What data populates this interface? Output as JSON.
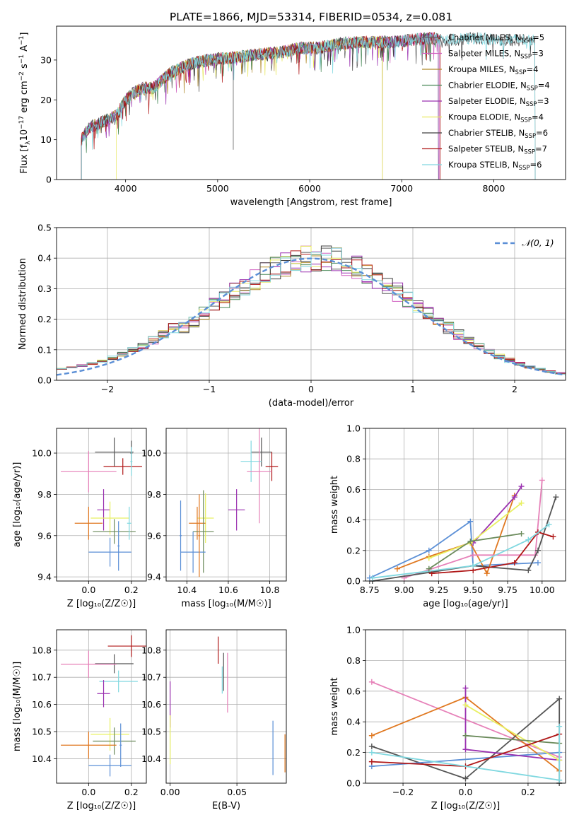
{
  "figure": {
    "title": "PLATE=1866, MJD=53314, FIBERID=0534, z=0.081"
  },
  "colors": {
    "Chabrier MILES": "#5f5f5f",
    "Salpeter MILES": "#d060c0",
    "Kroupa MILES": "#b08a2a",
    "Chabrier ELODIE": "#4a8a5a",
    "Salpeter ELODIE": "#9a30b0",
    "Kroupa ELODIE": "#e8e860",
    "Chabrier STELIB": "#404040",
    "Salpeter STELIB": "#b01818",
    "Kroupa STELIB": "#80d8e0",
    "gauss": "#5b8fd6",
    "p_blue": "#5b8fd6",
    "p_orange": "#e07820",
    "p_pink": "#e680b8",
    "p_purple": "#9a30b0",
    "p_gray": "#555555",
    "p_red": "#b01818",
    "p_cyan": "#80d8e0",
    "p_yellow": "#e8f060",
    "p_green": "#6a8a5a"
  },
  "chart_data": [
    {
      "id": "spectrum",
      "type": "line",
      "title": "PLATE=1866, MJD=53314, FIBERID=0534, z=0.081",
      "xlabel": "wavelength [Angstrom, rest frame]",
      "ylabel_main": "Flux [f",
      "ylabel_sub": "λ",
      "ylabel_rest": "10",
      "ylabel_exp": "−17",
      "ylabel_units": " erg cm",
      "xlim": [
        3250,
        8780
      ],
      "ylim": [
        0,
        38.5
      ],
      "xticks": [
        4000,
        5000,
        6000,
        7000,
        8000
      ],
      "yticks": [
        0,
        10,
        20,
        30
      ],
      "xtick_labels": [
        "4000",
        "5000",
        "6000",
        "7000",
        "8000"
      ],
      "ytick_labels": [
        "0",
        "10",
        "20",
        "30"
      ],
      "continuum": [
        [
          3520,
          10
        ],
        [
          3600,
          13
        ],
        [
          3700,
          14
        ],
        [
          3800,
          15
        ],
        [
          3900,
          16
        ],
        [
          4000,
          20
        ],
        [
          4100,
          22
        ],
        [
          4200,
          23
        ],
        [
          4300,
          23
        ],
        [
          4400,
          25
        ],
        [
          4500,
          27
        ],
        [
          4700,
          29
        ],
        [
          4900,
          30
        ],
        [
          5100,
          30.5
        ],
        [
          5300,
          31
        ],
        [
          5500,
          31.5
        ],
        [
          5700,
          32
        ],
        [
          5900,
          33
        ],
        [
          6100,
          33
        ],
        [
          6300,
          34
        ],
        [
          6500,
          34.5
        ],
        [
          6700,
          34.5
        ],
        [
          6900,
          34.5
        ],
        [
          7100,
          35
        ],
        [
          7300,
          35.5
        ],
        [
          7500,
          35
        ],
        [
          7800,
          35.5
        ],
        [
          8100,
          35
        ],
        [
          8400,
          35
        ]
      ],
      "legend": [
        {
          "label": "Chabrier MILES, N",
          "sub": "SSP",
          "n": "=5",
          "color_key": "Chabrier MILES"
        },
        {
          "label": "Salpeter MILES, N",
          "sub": "SSP",
          "n": "=3",
          "color_key": "Salpeter MILES"
        },
        {
          "label": "Kroupa MILES, N",
          "sub": "SSP",
          "n": "=4",
          "color_key": "Kroupa MILES"
        },
        {
          "label": "Chabrier ELODIE, N",
          "sub": "SSP",
          "n": "=4",
          "color_key": "Chabrier ELODIE"
        },
        {
          "label": "Salpeter ELODIE, N",
          "sub": "SSP",
          "n": "=3",
          "color_key": "Salpeter ELODIE"
        },
        {
          "label": "Kroupa ELODIE, N",
          "sub": "SSP",
          "n": "=4",
          "color_key": "Kroupa ELODIE"
        },
        {
          "label": "Chabrier STELIB, N",
          "sub": "SSP",
          "n": "=6",
          "color_key": "Chabrier STELIB"
        },
        {
          "label": "Salpeter STELIB, N",
          "sub": "SSP",
          "n": "=7",
          "color_key": "Salpeter STELIB"
        },
        {
          "label": "Kroupa STELIB, N",
          "sub": "SSP",
          "n": "=6",
          "color_key": "Kroupa STELIB"
        }
      ],
      "legend_placement": "right"
    },
    {
      "id": "residuals",
      "type": "histogram",
      "xlabel": "(data-model)/error",
      "ylabel": "Normed distribution",
      "xlim": [
        -2.5,
        2.5
      ],
      "ylim": [
        0,
        0.5
      ],
      "xticks": [
        -2,
        -1,
        0,
        1,
        2
      ],
      "xtick_labels": [
        "−2",
        "−1",
        "0",
        "1",
        "2"
      ],
      "yticks": [
        0,
        0.1,
        0.2,
        0.3,
        0.4,
        0.5
      ],
      "ytick_labels": [
        "0.0",
        "0.1",
        "0.2",
        "0.3",
        "0.4",
        "0.5"
      ],
      "bin_width": 0.1,
      "gauss_label": "𝒩(0, 1)",
      "grid": true
    },
    {
      "id": "age_vs_Z",
      "type": "errorbar",
      "xlabel": "Z [log₁₀(Z/Z☉)]",
      "ylabel": "age  [log₁₀(age/yr)]",
      "xlim": [
        -0.15,
        0.27
      ],
      "ylim": [
        9.38,
        10.12
      ],
      "xticks": [
        0.0,
        0.2
      ],
      "xtick_labels": [
        "0.0",
        "0.2"
      ],
      "yticks": [
        9.4,
        9.6,
        9.8,
        10.0
      ],
      "ytick_labels": [
        "9.4",
        "9.6",
        "9.8",
        "10.0"
      ],
      "points": [
        {
          "x": 0.12,
          "xerr": 0.09,
          "y": 10.005,
          "yerr": 0.07,
          "c": "p_gray"
        },
        {
          "x": 0.2,
          "xerr": 0.005,
          "y": 10.0,
          "yerr": 0.06,
          "c": "p_gray"
        },
        {
          "x": 0.16,
          "xerr": 0.09,
          "y": 9.935,
          "yerr": 0.04,
          "c": "p_red"
        },
        {
          "x": 0.2,
          "xerr": 0.005,
          "y": 9.96,
          "yerr": 0.07,
          "c": "p_cyan"
        },
        {
          "x": 0.0,
          "xerr": 0.13,
          "y": 9.91,
          "yerr": 0.1,
          "c": "p_pink"
        },
        {
          "x": 0.07,
          "xerr": 0.03,
          "y": 9.725,
          "yerr": 0.1,
          "c": "p_purple"
        },
        {
          "x": 0.1,
          "xerr": 0.09,
          "y": 9.685,
          "yerr": 0.08,
          "c": "p_yellow"
        },
        {
          "x": 0.0,
          "xerr": 0.065,
          "y": 9.66,
          "yerr": 0.08,
          "c": "p_orange"
        },
        {
          "x": 0.12,
          "xerr": 0.1,
          "y": 9.62,
          "yerr": 0.06,
          "c": "p_green"
        },
        {
          "x": 0.19,
          "xerr": 0.01,
          "y": 9.66,
          "yerr": 0.08,
          "c": "p_cyan"
        },
        {
          "x": 0.1,
          "xerr": 0.1,
          "y": 9.52,
          "yerr": 0.07,
          "c": "p_blue"
        },
        {
          "x": 0.14,
          "xerr": 0.005,
          "y": 9.55,
          "yerr": 0.12,
          "c": "p_blue"
        }
      ]
    },
    {
      "id": "age_vs_mass",
      "type": "errorbar",
      "xlabel": "mass [log₁₀(M/M☉)]",
      "ylabel": "",
      "xlim": [
        10.3,
        10.88
      ],
      "ylim": [
        9.38,
        10.12
      ],
      "xticks": [
        10.4,
        10.6,
        10.8
      ],
      "xtick_labels": [
        "10.4",
        "10.6",
        "10.8"
      ],
      "yticks": [
        9.4,
        9.6,
        9.8,
        10.0
      ],
      "ytick_labels": [
        "9.4",
        "9.6",
        "9.8",
        "10.0"
      ],
      "points": [
        {
          "x": 10.76,
          "xerr": 0.05,
          "y": 10.005,
          "yerr": 0.07,
          "c": "p_gray"
        },
        {
          "x": 10.81,
          "xerr": 0.03,
          "y": 9.935,
          "yerr": 0.07,
          "c": "p_red"
        },
        {
          "x": 10.71,
          "xerr": 0.05,
          "y": 9.96,
          "yerr": 0.1,
          "c": "p_cyan"
        },
        {
          "x": 10.75,
          "xerr": 0.06,
          "y": 9.91,
          "yerr": 0.25,
          "c": "p_pink"
        },
        {
          "x": 10.64,
          "xerr": 0.04,
          "y": 9.725,
          "yerr": 0.1,
          "c": "p_purple"
        },
        {
          "x": 10.49,
          "xerr": 0.04,
          "y": 9.685,
          "yerr": 0.12,
          "c": "p_yellow"
        },
        {
          "x": 10.45,
          "xerr": 0.04,
          "y": 9.66,
          "yerr": 0.08,
          "c": "p_orange"
        },
        {
          "x": 10.48,
          "xerr": 0.05,
          "y": 9.62,
          "yerr": 0.2,
          "c": "p_green"
        },
        {
          "x": 10.43,
          "xerr": 0.06,
          "y": 9.52,
          "yerr": 0.1,
          "c": "p_blue"
        },
        {
          "x": 10.37,
          "xerr": 0.005,
          "y": 9.6,
          "yerr": 0.17,
          "c": "p_blue"
        },
        {
          "x": 10.46,
          "xerr": 0.005,
          "y": 9.6,
          "yerr": 0.2,
          "c": "p_orange"
        }
      ]
    },
    {
      "id": "weight_vs_age",
      "type": "line",
      "xlabel": "age  [log₁₀(age/yr)]",
      "ylabel": "mass weight",
      "xlim": [
        8.72,
        10.17
      ],
      "ylim": [
        0,
        1
      ],
      "xticks": [
        8.75,
        9.0,
        9.25,
        9.5,
        9.75,
        10.0
      ],
      "xtick_labels": [
        "8.75",
        "9.00",
        "9.25",
        "9.50",
        "9.75",
        "10.00"
      ],
      "yticks": [
        0,
        0.2,
        0.4,
        0.6,
        0.8,
        1.0
      ],
      "ytick_labels": [
        "0.0",
        "0.2",
        "0.4",
        "0.6",
        "0.8",
        "1.0"
      ],
      "series": [
        {
          "c": "p_blue",
          "x": [
            8.75,
            9.18,
            9.48,
            9.5,
            9.97
          ],
          "y": [
            0.02,
            0.2,
            0.39,
            0.1,
            0.12
          ]
        },
        {
          "c": "p_orange",
          "x": [
            8.95,
            9.18,
            9.48,
            9.6,
            9.8
          ],
          "y": [
            0.08,
            0.16,
            0.25,
            0.05,
            0.56
          ]
        },
        {
          "c": "p_pink",
          "x": [
            9.0,
            9.5,
            9.95,
            10.0
          ],
          "y": [
            0.02,
            0.17,
            0.17,
            0.66
          ]
        },
        {
          "c": "p_purple",
          "x": [
            9.5,
            9.8,
            9.85
          ],
          "y": [
            0.25,
            0.55,
            0.62
          ]
        },
        {
          "c": "p_gray",
          "x": [
            8.77,
            9.5,
            9.9,
            9.97,
            10.1
          ],
          "y": [
            0.0,
            0.1,
            0.07,
            0.2,
            0.55
          ]
        },
        {
          "c": "p_red",
          "x": [
            9.2,
            9.5,
            9.8,
            9.97,
            10.08
          ],
          "y": [
            0.05,
            0.07,
            0.12,
            0.32,
            0.29
          ]
        },
        {
          "c": "p_cyan",
          "x": [
            8.77,
            9.5,
            9.9,
            10.05
          ],
          "y": [
            0.02,
            0.1,
            0.27,
            0.37
          ]
        },
        {
          "c": "p_yellow",
          "x": [
            9.18,
            9.48,
            9.85
          ],
          "y": [
            0.15,
            0.25,
            0.51
          ]
        },
        {
          "c": "p_green",
          "x": [
            9.18,
            9.48,
            9.85
          ],
          "y": [
            0.08,
            0.26,
            0.31
          ]
        }
      ]
    },
    {
      "id": "mass_vs_Z",
      "type": "errorbar",
      "xlabel": "Z [log₁₀(Z/Z☉)]",
      "ylabel": "mass [log₁₀(M/M☉)]",
      "xlim": [
        -0.15,
        0.27
      ],
      "ylim": [
        10.31,
        10.875
      ],
      "xticks": [
        0.0,
        0.2
      ],
      "xtick_labels": [
        "0.0",
        "0.2"
      ],
      "yticks": [
        10.4,
        10.5,
        10.6,
        10.7,
        10.8
      ],
      "ytick_labels": [
        "10.4",
        "10.5",
        "10.6",
        "10.7",
        "10.8"
      ],
      "points": [
        {
          "x": 0.2,
          "xerr": 0.11,
          "y": 10.815,
          "yerr": 0.04,
          "c": "p_red"
        },
        {
          "x": 0.12,
          "xerr": 0.09,
          "y": 10.75,
          "yerr": 0.035,
          "c": "p_gray"
        },
        {
          "x": 0.0,
          "xerr": 0.13,
          "y": 10.748,
          "yerr": 0.05,
          "c": "p_pink"
        },
        {
          "x": 0.14,
          "xerr": 0.09,
          "y": 10.685,
          "yerr": 0.04,
          "c": "p_cyan"
        },
        {
          "x": 0.07,
          "xerr": 0.03,
          "y": 10.64,
          "yerr": 0.05,
          "c": "p_purple"
        },
        {
          "x": 0.1,
          "xerr": 0.09,
          "y": 10.49,
          "yerr": 0.06,
          "c": "p_yellow"
        },
        {
          "x": 0.12,
          "xerr": 0.1,
          "y": 10.465,
          "yerr": 0.05,
          "c": "p_green"
        },
        {
          "x": 0.0,
          "xerr": 0.13,
          "y": 10.45,
          "yerr": 0.05,
          "c": "p_orange"
        },
        {
          "x": 0.1,
          "xerr": 0.1,
          "y": 10.375,
          "yerr": 0.04,
          "c": "p_blue"
        },
        {
          "x": 0.15,
          "xerr": 0.005,
          "y": 10.45,
          "yerr": 0.08,
          "c": "p_blue"
        }
      ]
    },
    {
      "id": "mass_vs_EBV",
      "type": "errorbar",
      "xlabel": "E(B-V)",
      "ylabel": "",
      "xlim": [
        -0.003,
        0.087
      ],
      "ylim": [
        10.31,
        10.875
      ],
      "xticks": [
        0.0,
        0.05
      ],
      "xtick_labels": [
        "0.00",
        "0.05"
      ],
      "yticks": [
        10.4,
        10.5,
        10.6,
        10.7,
        10.8
      ],
      "ytick_labels": [
        "10.4",
        "10.5",
        "10.6",
        "10.7",
        "10.8"
      ],
      "points": [
        {
          "x": 0.036,
          "xerr": 0.0,
          "y": 10.8,
          "yerr": 0.05,
          "c": "p_red"
        },
        {
          "x": 0.04,
          "xerr": 0.0,
          "y": 10.72,
          "yerr": 0.07,
          "c": "p_gray"
        },
        {
          "x": 0.039,
          "xerr": 0.0,
          "y": 10.69,
          "yerr": 0.05,
          "c": "p_cyan"
        },
        {
          "x": 0.043,
          "xerr": 0.0,
          "y": 10.68,
          "yerr": 0.11,
          "c": "p_pink"
        },
        {
          "x": 0.0,
          "xerr": 0.0,
          "y": 10.6,
          "yerr": 0.085,
          "c": "p_purple"
        },
        {
          "x": 0.0,
          "xerr": 0.0,
          "y": 10.47,
          "yerr": 0.09,
          "c": "p_yellow"
        },
        {
          "x": 0.077,
          "xerr": 0.0,
          "y": 10.44,
          "yerr": 0.1,
          "c": "p_blue"
        },
        {
          "x": 0.086,
          "xerr": 0.0,
          "y": 10.42,
          "yerr": 0.07,
          "c": "p_orange"
        }
      ]
    },
    {
      "id": "weight_vs_Z",
      "type": "line",
      "xlabel": "Z [log₁₀(Z/Z☉)]",
      "ylabel": "mass weight",
      "xlim": [
        -0.32,
        0.32
      ],
      "ylim": [
        0,
        1
      ],
      "xticks": [
        -0.2,
        0.0,
        0.2
      ],
      "xtick_labels": [
        "−0.2",
        "0.0",
        "0.2"
      ],
      "yticks": [
        0,
        0.2,
        0.4,
        0.6,
        0.8,
        1.0
      ],
      "ytick_labels": [
        "0.0",
        "0.2",
        "0.4",
        "0.6",
        "0.8",
        "1.0"
      ],
      "series": [
        {
          "c": "p_pink",
          "x": [
            -0.3,
            0.3
          ],
          "y": [
            0.66,
            0.17
          ]
        },
        {
          "c": "p_orange",
          "x": [
            -0.3,
            0.0,
            0.3
          ],
          "y": [
            0.31,
            0.56,
            0.08
          ]
        },
        {
          "c": "p_gray",
          "x": [
            -0.3,
            0.0,
            0.3,
            0.3
          ],
          "y": [
            0.24,
            0.03,
            0.55,
            0.0
          ]
        },
        {
          "c": "p_blue",
          "x": [
            -0.3,
            0.3
          ],
          "y": [
            0.11,
            0.2
          ]
        },
        {
          "c": "p_purple",
          "x": [
            0.0,
            0.0,
            0.3
          ],
          "y": [
            0.62,
            0.22,
            0.15
          ]
        },
        {
          "c": "p_yellow",
          "x": [
            0.0,
            0.3
          ],
          "y": [
            0.51,
            0.15
          ]
        },
        {
          "c": "p_green",
          "x": [
            0.0,
            0.3
          ],
          "y": [
            0.31,
            0.26
          ]
        },
        {
          "c": "p_red",
          "x": [
            -0.3,
            0.0,
            0.3
          ],
          "y": [
            0.14,
            0.11,
            0.32
          ]
        },
        {
          "c": "p_cyan",
          "x": [
            -0.3,
            0.3,
            0.3
          ],
          "y": [
            0.2,
            0.02,
            0.37
          ]
        }
      ]
    }
  ]
}
